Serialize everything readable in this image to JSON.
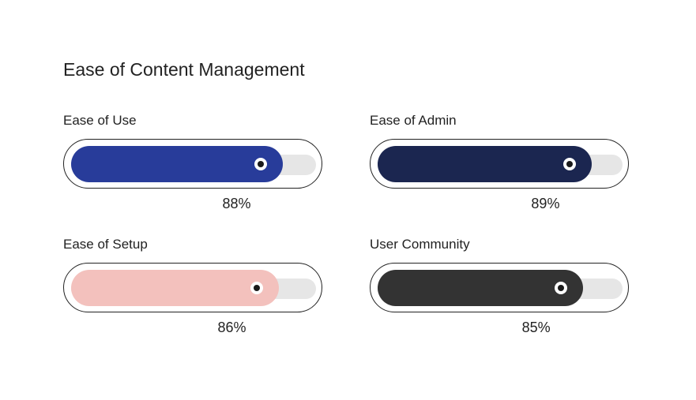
{
  "title": "Ease of Content Management",
  "chart_data": {
    "type": "bar",
    "title": "Ease of Content Management",
    "categories": [
      "Ease of Use",
      "Ease of Admin",
      "Ease of Setup",
      "User Community"
    ],
    "values": [
      88,
      89,
      86,
      85
    ],
    "value_labels": [
      "88%",
      "89%",
      "86%",
      "85%"
    ],
    "unit": "%",
    "ylim": [
      0,
      100
    ],
    "colors": [
      "#283c9a",
      "#1b2650",
      "#f3c1bd",
      "#333333"
    ],
    "track_color": "#e6e6e6"
  }
}
